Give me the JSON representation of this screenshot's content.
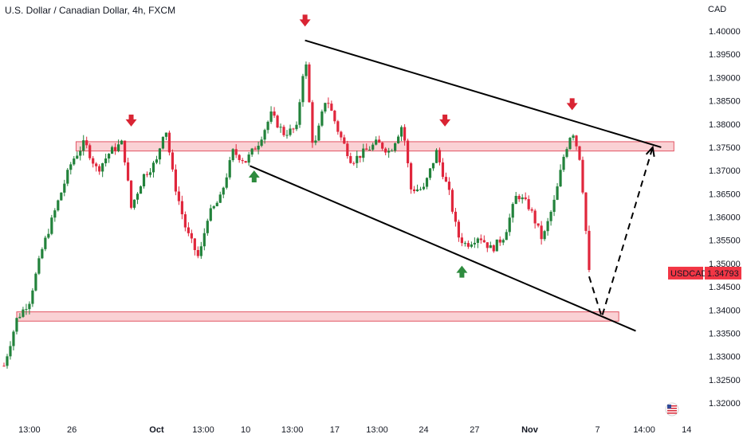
{
  "chart_data": {
    "type": "candlestick",
    "title": "U.S. Dollar / Canadian Dollar, 4h, FXCM",
    "currency": "CAD",
    "symbol": "USDCAD",
    "last_price": "1.34793",
    "ylim": [
      1.3175,
      1.403
    ],
    "xlim": [
      0,
      160
    ],
    "y_ticks": [
      "1.40000",
      "1.39500",
      "1.39000",
      "1.38500",
      "1.38000",
      "1.37500",
      "1.37000",
      "1.36500",
      "1.36000",
      "1.35500",
      "1.35000",
      "1.34500",
      "1.34000",
      "1.33500",
      "1.33000",
      "1.32500",
      "1.32000"
    ],
    "x_ticks": [
      {
        "label": "13:00",
        "x": 6,
        "bold": false
      },
      {
        "label": "26",
        "x": 16,
        "bold": false
      },
      {
        "label": "Oct",
        "x": 36,
        "bold": true
      },
      {
        "label": "13:00",
        "x": 47,
        "bold": false
      },
      {
        "label": "10",
        "x": 57,
        "bold": false
      },
      {
        "label": "13:00",
        "x": 68,
        "bold": false
      },
      {
        "label": "17",
        "x": 78,
        "bold": false
      },
      {
        "label": "13:00",
        "x": 88,
        "bold": false
      },
      {
        "label": "24",
        "x": 99,
        "bold": false
      },
      {
        "label": "27",
        "x": 111,
        "bold": false
      },
      {
        "label": "Nov",
        "x": 124,
        "bold": true
      },
      {
        "label": "7",
        "x": 140,
        "bold": false
      },
      {
        "label": "14:00",
        "x": 151,
        "bold": false
      },
      {
        "label": "14",
        "x": 161,
        "bold": false
      }
    ],
    "zones": [
      {
        "x1": 17,
        "x2": 158,
        "y1": 1.3742,
        "y2": 1.3762
      },
      {
        "x1": 3,
        "x2": 145,
        "y1": 1.3376,
        "y2": 1.3396
      }
    ],
    "trendlines": [
      {
        "x1": 71,
        "y1": 1.398,
        "x2": 155,
        "y2": 1.375
      },
      {
        "x1": 58,
        "y1": 1.371,
        "x2": 149,
        "y2": 1.3355
      }
    ],
    "projection": [
      {
        "x": 138,
        "y": 1.3472
      },
      {
        "x": 141,
        "y": 1.3385
      },
      {
        "x": 153,
        "y": 1.375
      }
    ],
    "markers": [
      {
        "type": "down",
        "x": 71,
        "y": 1.402
      },
      {
        "type": "down",
        "x": 30,
        "y": 1.3805
      },
      {
        "type": "down",
        "x": 104,
        "y": 1.3805
      },
      {
        "type": "down",
        "x": 134,
        "y": 1.384
      },
      {
        "type": "up",
        "x": 59,
        "y": 1.369
      },
      {
        "type": "up",
        "x": 108,
        "y": 1.3485
      }
    ],
    "colors": {
      "up": "#22823b",
      "down": "#e0263c",
      "zone_fill": "#f9c9cc",
      "zone_stroke": "#e25564",
      "line": "#000000",
      "marker_down": "#d92433",
      "marker_up": "#2e8b3e",
      "price_label": "#f23645"
    }
  }
}
